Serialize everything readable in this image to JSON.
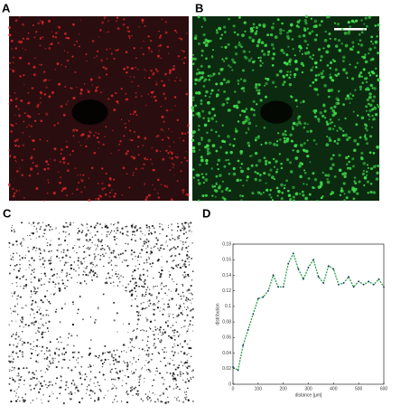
{
  "panels": {
    "labels": [
      "A",
      "B",
      "C",
      "D"
    ]
  },
  "chart_data": {
    "type": "line",
    "xlabel": "distance [µm]",
    "ylabel": "distribution",
    "x": [
      0,
      20,
      40,
      60,
      80,
      100,
      120,
      140,
      160,
      180,
      200,
      220,
      240,
      260,
      280,
      300,
      320,
      340,
      360,
      380,
      400,
      420,
      440,
      460,
      480,
      500,
      520,
      540,
      560,
      580,
      600
    ],
    "values": [
      0.022,
      0.018,
      0.05,
      0.07,
      0.09,
      0.11,
      0.112,
      0.12,
      0.14,
      0.125,
      0.125,
      0.155,
      0.168,
      0.148,
      0.135,
      0.15,
      0.16,
      0.138,
      0.13,
      0.152,
      0.148,
      0.128,
      0.13,
      0.138,
      0.125,
      0.132,
      0.128,
      0.132,
      0.128,
      0.135,
      0.125
    ],
    "color": "#2e9e4f",
    "marker_color": "#1b2a5a",
    "xlim": [
      0,
      600
    ],
    "xticks": [
      0,
      100,
      200,
      300,
      400,
      500,
      600
    ],
    "ylim": [
      0,
      0.18
    ],
    "yticks": [
      0,
      0.02,
      0.04,
      0.06,
      0.08,
      0.1,
      0.12,
      0.14,
      0.16,
      0.18
    ],
    "grid": false
  }
}
